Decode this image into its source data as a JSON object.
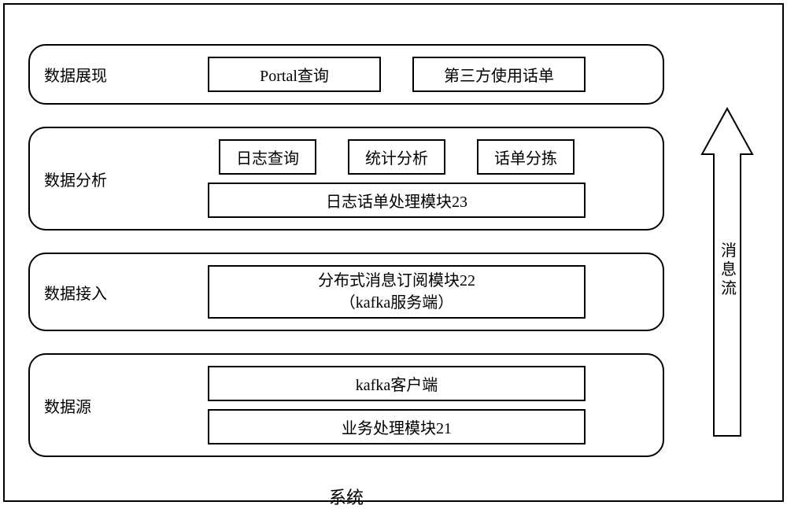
{
  "diagram": {
    "type": "flowchart",
    "border_color": "#000000",
    "background_color": "#ffffff",
    "font_size_label": 20,
    "font_size_system": 22,
    "layers": [
      {
        "key": "display",
        "label": "数据展现",
        "rows": [
          {
            "chips": [
              {
                "text": "Portal查询",
                "width": "med"
              },
              {
                "text": "第三方使用话单",
                "width": "med"
              }
            ]
          }
        ]
      },
      {
        "key": "analysis",
        "label": "数据分析",
        "rows": [
          {
            "chips": [
              {
                "text": "日志查询",
                "width": ""
              },
              {
                "text": "统计分析",
                "width": ""
              },
              {
                "text": "话单分拣",
                "width": ""
              }
            ]
          },
          {
            "chips": [
              {
                "text": "日志话单处理模块23",
                "width": "wide"
              }
            ]
          }
        ]
      },
      {
        "key": "access",
        "label": "数据接入",
        "rows": [
          {
            "chips": [
              {
                "text": "分布式消息订阅模块22\n（kafka服务端）",
                "width": "wide",
                "multiline": true
              }
            ]
          }
        ]
      },
      {
        "key": "source",
        "label": "数据源",
        "rows": [
          {
            "chips": [
              {
                "text": "kafka客户端",
                "width": "wide"
              }
            ]
          },
          {
            "chips": [
              {
                "text": "业务处理模块21",
                "width": "wide"
              }
            ]
          }
        ]
      }
    ],
    "system_label": "系统",
    "arrow_label": "消息流",
    "arrow": {
      "stroke": "#000000",
      "stroke_width": 2,
      "fill": "#ffffff",
      "head_width": 64,
      "head_height": 60,
      "shaft_width": 34
    }
  }
}
